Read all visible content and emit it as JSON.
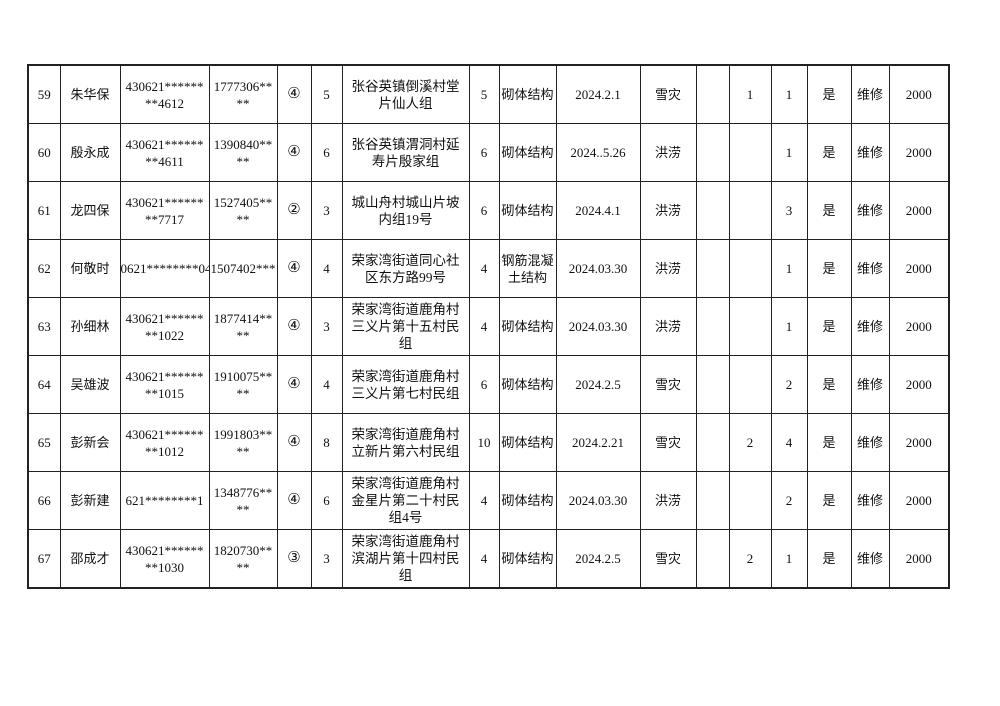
{
  "rows": [
    [
      "59",
      "朱华保",
      "430621********4612",
      "1777306****",
      "④",
      "5",
      "张谷英镇倒溪村堂片仙人组",
      "5",
      "砌体结构",
      "2024.2.1",
      "雪灾",
      "",
      "1",
      "1",
      "是",
      "维修",
      "2000"
    ],
    [
      "60",
      "殷永成",
      "430621********4611",
      "1390840****",
      "④",
      "6",
      "张谷英镇渭洞村延寿片殷家组",
      "6",
      "砌体结构",
      "2024..5.26",
      "洪涝",
      "",
      "",
      "1",
      "是",
      "维修",
      "2000"
    ],
    [
      "61",
      "龙四保",
      "430621********7717",
      "1527405****",
      "②",
      "3",
      "城山舟村城山片坡内组19号",
      "6",
      "砌体结构",
      "2024.4.1",
      "洪涝",
      "",
      "",
      "3",
      "是",
      "维修",
      "2000"
    ],
    [
      "62",
      "何敬时",
      "0621********04",
      "1507402***",
      "④",
      "4",
      "荣家湾街道同心社区东方路99号",
      "4",
      "钢筋混凝土结构",
      "2024.03.30",
      "洪涝",
      "",
      "",
      "1",
      "是",
      "维修",
      "2000"
    ],
    [
      "63",
      "孙细林",
      "430621********1022",
      "1877414****",
      "④",
      "3",
      "荣家湾街道鹿角村三义片第十五村民组",
      "4",
      "砌体结构",
      "2024.03.30",
      "洪涝",
      "",
      "",
      "1",
      "是",
      "维修",
      "2000"
    ],
    [
      "64",
      "吴雄波",
      "430621********1015",
      "1910075****",
      "④",
      "4",
      "荣家湾街道鹿角村三义片第七村民组",
      "6",
      "砌体结构",
      "2024.2.5",
      "雪灾",
      "",
      "",
      "2",
      "是",
      "维修",
      "2000"
    ],
    [
      "65",
      "彭新会",
      "430621********1012",
      "1991803****",
      "④",
      "8",
      "荣家湾街道鹿角村立新片第六村民组",
      "10",
      "砌体结构",
      "2024.2.21",
      "雪灾",
      "",
      "2",
      "4",
      "是",
      "维修",
      "2000"
    ],
    [
      "66",
      "彭新建",
      "621********1",
      "1348776****",
      "④",
      "6",
      "荣家湾街道鹿角村金星片第二十村民组4号",
      "4",
      "砌体结构",
      "2024.03.30",
      "洪涝",
      "",
      "",
      "2",
      "是",
      "维修",
      "2000"
    ],
    [
      "67",
      "邵成才",
      "430621********1030",
      "1820730****",
      "③",
      "3",
      "荣家湾街道鹿角村滨湖片第十四村民组",
      "4",
      "砌体结构",
      "2024.2.5",
      "雪灾",
      "",
      "2",
      "1",
      "是",
      "维修",
      "2000"
    ]
  ]
}
